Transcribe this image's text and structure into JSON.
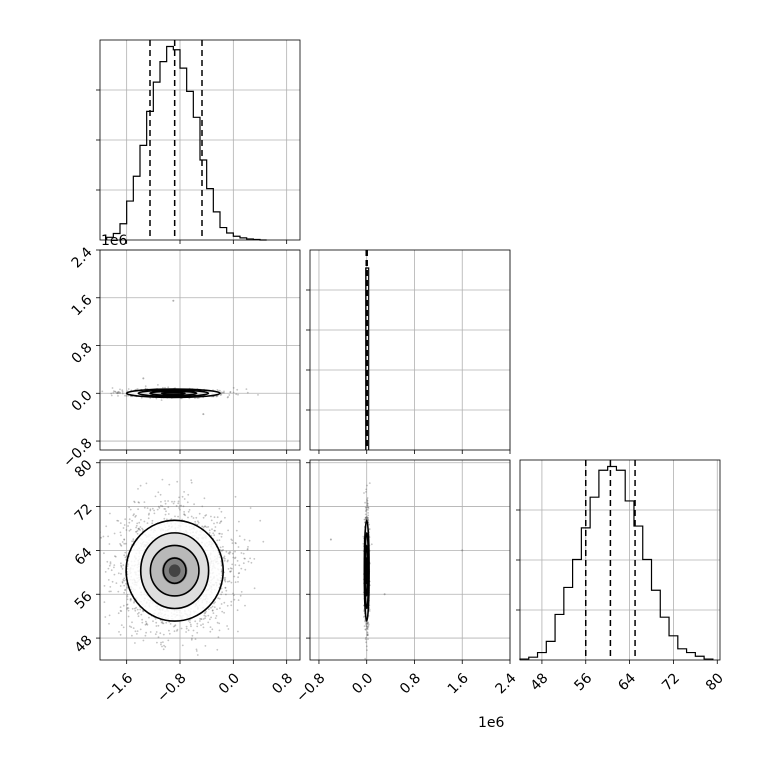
{
  "chart_data": [
    {
      "type": "histogram",
      "panel": "hist-param-1",
      "grid": true,
      "x_ticks": [
        "−1.6",
        "−0.8",
        "0.0",
        "0.8"
      ],
      "x_offset": "1e6",
      "bin_edges": [
        -1900000.0,
        -1800000.0,
        -1700000.0,
        -1600000.0,
        -1500000.0,
        -1400000.0,
        -1300000.0,
        -1200000.0,
        -1100000.0,
        -1000000.0,
        -900000.0,
        -800000.0,
        -700000.0,
        -600000.0,
        -500000.0,
        -400000.0,
        -300000.0,
        -200000.0,
        -100000.0,
        0.0,
        100000.0,
        200000.0,
        300000.0,
        400000.0,
        500000.0
      ],
      "counts": [
        5,
        12,
        30,
        72,
        118,
        175,
        238,
        292,
        330,
        358,
        352,
        318,
        275,
        227,
        148,
        95,
        52,
        23,
        13,
        7,
        4,
        2,
        1,
        0
      ],
      "quantiles": [
        -1250000.0,
        -880000.0,
        -470000.0
      ]
    },
    {
      "type": "histogram",
      "panel": "hist-param-2",
      "grid": true,
      "bin_edges": [
        -100000.0,
        0.0,
        100000.0
      ],
      "counts": [
        100,
        100
      ],
      "quantiles": [
        -10000.0,
        0.0,
        10000.0
      ]
    },
    {
      "type": "histogram",
      "panel": "hist-param-3",
      "grid": true,
      "x_ticks": [
        "48",
        "56",
        "64",
        "72",
        "80"
      ],
      "bin_edges": [
        44,
        45.6,
        47.2,
        48.8,
        50.4,
        52,
        53.6,
        55.2,
        56.8,
        58.4,
        60,
        61.6,
        63.2,
        64.8,
        66.4,
        68,
        69.6,
        71.2,
        72.8,
        74.4,
        76,
        77.6,
        79.2
      ],
      "counts": [
        1,
        3,
        8,
        20,
        49,
        78,
        108,
        142,
        175,
        204,
        208,
        204,
        171,
        144,
        108,
        75,
        46,
        26,
        12,
        8,
        4,
        1
      ],
      "quantiles": [
        56.0,
        60.5,
        65.0
      ]
    },
    {
      "type": "scatter-density",
      "panel": "param-1-vs-param-2",
      "grid": true,
      "y_ticks": [
        "−0.8",
        "0.0",
        "0.8",
        "1.6",
        "2.4"
      ],
      "y_offset": "1e6",
      "center": {
        "x": -900000.0,
        "y": 0.0
      },
      "spread": {
        "x": 350000.0,
        "y": 35000.0
      },
      "contour_levels": [
        0.5,
        1.0,
        1.5,
        2.0
      ],
      "outliers": [
        {
          "x": -900000.0,
          "y": 1550000.0
        },
        {
          "x": -1350000.0,
          "y": 250000.0
        },
        {
          "x": -450000.0,
          "y": -350000.0
        }
      ]
    },
    {
      "type": "scatter-density",
      "panel": "param-1-vs-param-3",
      "grid": true,
      "x_ticks": [
        "−1.6",
        "−0.8",
        "0.0",
        "0.8"
      ],
      "x_offset": "1e6",
      "y_ticks": [
        "48",
        "56",
        "64",
        "72",
        "80"
      ],
      "center": {
        "x": -880000.0,
        "y": 60.3
      },
      "spread": {
        "x": 350000.0,
        "y": 4.6
      },
      "contour_levels": [
        0.5,
        1.0,
        1.5,
        2.0
      ]
    },
    {
      "type": "scatter-density",
      "panel": "param-2-vs-param-3",
      "grid": true,
      "x_ticks": [
        "−0.8",
        "0.0",
        "0.8",
        "1.6",
        "2.4"
      ],
      "x_offset": "1e6",
      "center": {
        "x": 0.0,
        "y": 60.3
      },
      "spread": {
        "x": 20000.0,
        "y": 4.6
      },
      "contour_levels": [
        0.5,
        1.0,
        1.5,
        2.0
      ],
      "outliers": [
        {
          "x": -600000.0,
          "y": 66
        },
        {
          "x": 1600000.0,
          "y": 64
        },
        {
          "x": 300000.0,
          "y": 56
        }
      ]
    }
  ]
}
